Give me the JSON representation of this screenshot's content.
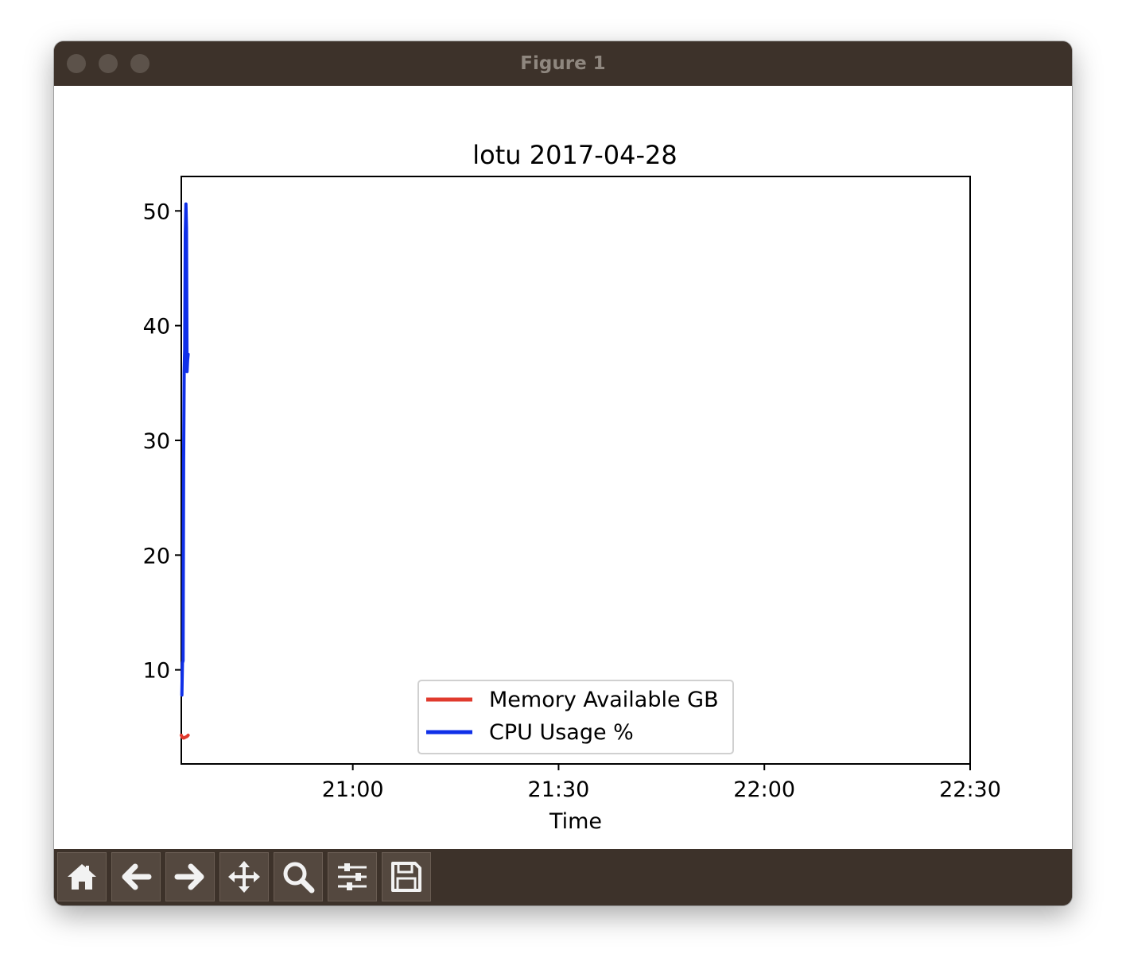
{
  "window": {
    "title": "Figure 1"
  },
  "toolbar": {
    "buttons": [
      {
        "icon": "home-icon"
      },
      {
        "icon": "arrow-left-icon"
      },
      {
        "icon": "arrow-right-icon"
      },
      {
        "icon": "move-icon"
      },
      {
        "icon": "zoom-icon"
      },
      {
        "icon": "sliders-icon"
      },
      {
        "icon": "save-icon"
      }
    ]
  },
  "colors": {
    "window_chrome": "#3d322a",
    "memory_series": "#e03a2d",
    "cpu_series": "#1030e8"
  },
  "chart_data": {
    "type": "line",
    "title": "lotu 2017-04-28",
    "xlabel": "Time",
    "ylabel": "",
    "x_ticks": [
      "21:00",
      "21:30",
      "22:00",
      "22:30"
    ],
    "y_ticks": [
      "10",
      "20",
      "30",
      "40",
      "50"
    ],
    "xlim": [
      "20:35",
      "22:30"
    ],
    "ylim": [
      1.8,
      53
    ],
    "grid": false,
    "legend_position": "lower center",
    "series": [
      {
        "name": "Memory Available GB",
        "color": "#e03a2d",
        "x": [
          "20:35:00",
          "20:35:10",
          "20:35:20",
          "20:35:30",
          "20:35:40",
          "20:35:50",
          "20:36:00"
        ],
        "y": [
          4.3,
          4.1,
          4.05,
          4.1,
          4.15,
          4.2,
          4.3
        ]
      },
      {
        "name": "CPU Usage %",
        "color": "#1030e8",
        "x": [
          "20:35:05",
          "20:35:10",
          "20:35:15",
          "20:35:20",
          "20:35:25",
          "20:35:30",
          "20:35:35",
          "20:35:40",
          "20:35:45",
          "20:35:50",
          "20:35:55",
          "20:36:00"
        ],
        "y": [
          7.8,
          10.6,
          10.8,
          28,
          36,
          38,
          48,
          50.6,
          48.5,
          36,
          37,
          37.5
        ]
      }
    ]
  }
}
